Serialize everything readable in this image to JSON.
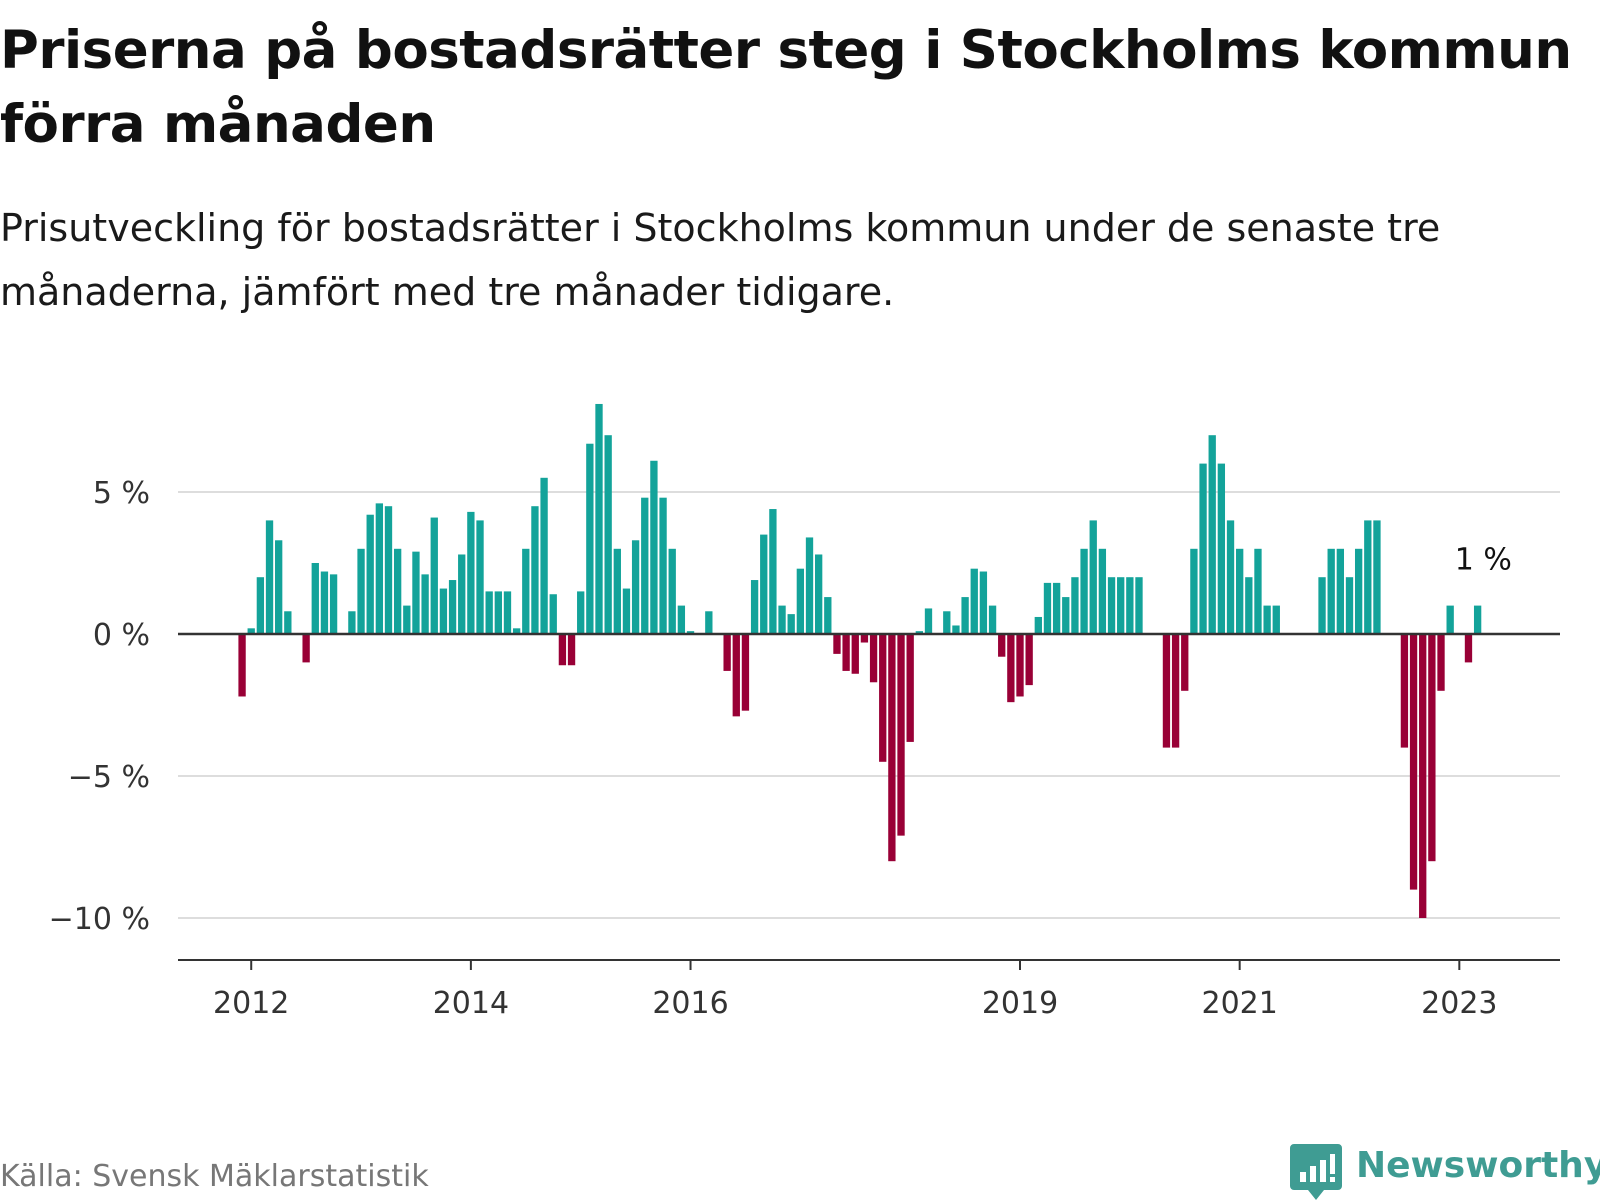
{
  "header": {
    "title": "Priserna på bostadsrätter steg i Stockholms kommun förra månaden",
    "subtitle": "Prisutveckling för bostadsrätter i Stockholms kommun under de senaste tre månaderna, jämfört med tre månader tidigare."
  },
  "footer": {
    "source": "Källa: Svensk Mäklarstatistik",
    "brand": "Newsworthy",
    "brand_icon": "bar-chart-speech-bubble-icon"
  },
  "colors": {
    "positive": "#13a39a",
    "negative": "#990036",
    "grid": "#dddddd",
    "axis": "#333333",
    "text": "#333333",
    "brand": "#3f9c93"
  },
  "chart_data": {
    "type": "bar",
    "title": "",
    "xlabel": "",
    "ylabel": "",
    "ylim": [
      -11.5,
      8.5
    ],
    "y_ticks": [
      {
        "value": 5,
        "label": "5 %"
      },
      {
        "value": 0,
        "label": "0 %"
      },
      {
        "value": -5,
        "label": "−5 %"
      },
      {
        "value": -10,
        "label": "−10 %"
      }
    ],
    "x_start": "2011-05",
    "x_end": "2023-12",
    "x_ticks": [
      {
        "date": "2012-01",
        "label": "2012"
      },
      {
        "date": "2014-01",
        "label": "2014"
      },
      {
        "date": "2016-01",
        "label": "2016"
      },
      {
        "date": "2019-01",
        "label": "2019"
      },
      {
        "date": "2021-01",
        "label": "2021"
      },
      {
        "date": "2023-01",
        "label": "2023"
      }
    ],
    "grid": true,
    "annotation": {
      "date": "2023-01",
      "label": "1 %"
    },
    "series": [
      {
        "first_month": "2011-12",
        "values": [
          -2.2,
          0.2,
          2.0,
          4.0,
          3.3,
          0.8,
          null,
          -1.0,
          2.5,
          2.2,
          2.1,
          null,
          0.8,
          3.0,
          4.2,
          4.6,
          4.5,
          3.0,
          1.0,
          2.9,
          2.1,
          4.1,
          1.6,
          1.9,
          2.8,
          4.3,
          4.0,
          1.5,
          1.5,
          1.5,
          0.2,
          3.0,
          4.5,
          5.5,
          1.4,
          -1.1,
          -1.1,
          1.5,
          6.7,
          8.1,
          7.0,
          3.0,
          1.6,
          3.3,
          4.8,
          6.1,
          4.8,
          3.0,
          1.0,
          0.1,
          null,
          0.8,
          null,
          -1.3,
          -2.9,
          -2.7,
          1.9,
          3.5,
          4.4,
          1.0,
          0.7,
          2.3,
          3.4,
          2.8,
          1.3,
          -0.7,
          -1.3,
          -1.4,
          -0.3,
          -1.7,
          -4.5,
          -8.0,
          -7.1,
          -3.8,
          0.1,
          0.9,
          null,
          0.8,
          0.3,
          1.3,
          2.3,
          2.2,
          1.0,
          -0.8,
          -2.4,
          -2.2,
          -1.8,
          0.6,
          1.8,
          1.8,
          1.3,
          2.0,
          3.0,
          4.0,
          3.0,
          2.0,
          2.0,
          2.0,
          2.0,
          null,
          null,
          -4.0,
          -4.0,
          -2.0,
          3.0,
          6.0,
          7.0,
          6.0,
          4.0,
          3.0,
          2.0,
          3.0,
          1.0,
          1.0,
          null,
          null,
          null,
          null,
          2.0,
          3.0,
          3.0,
          2.0,
          3.0,
          4.0,
          4.0,
          null,
          null,
          -4.0,
          -9.0,
          -10.0,
          -8.0,
          -2.0,
          1.0,
          null,
          -1.0,
          1.0
        ]
      }
    ]
  }
}
